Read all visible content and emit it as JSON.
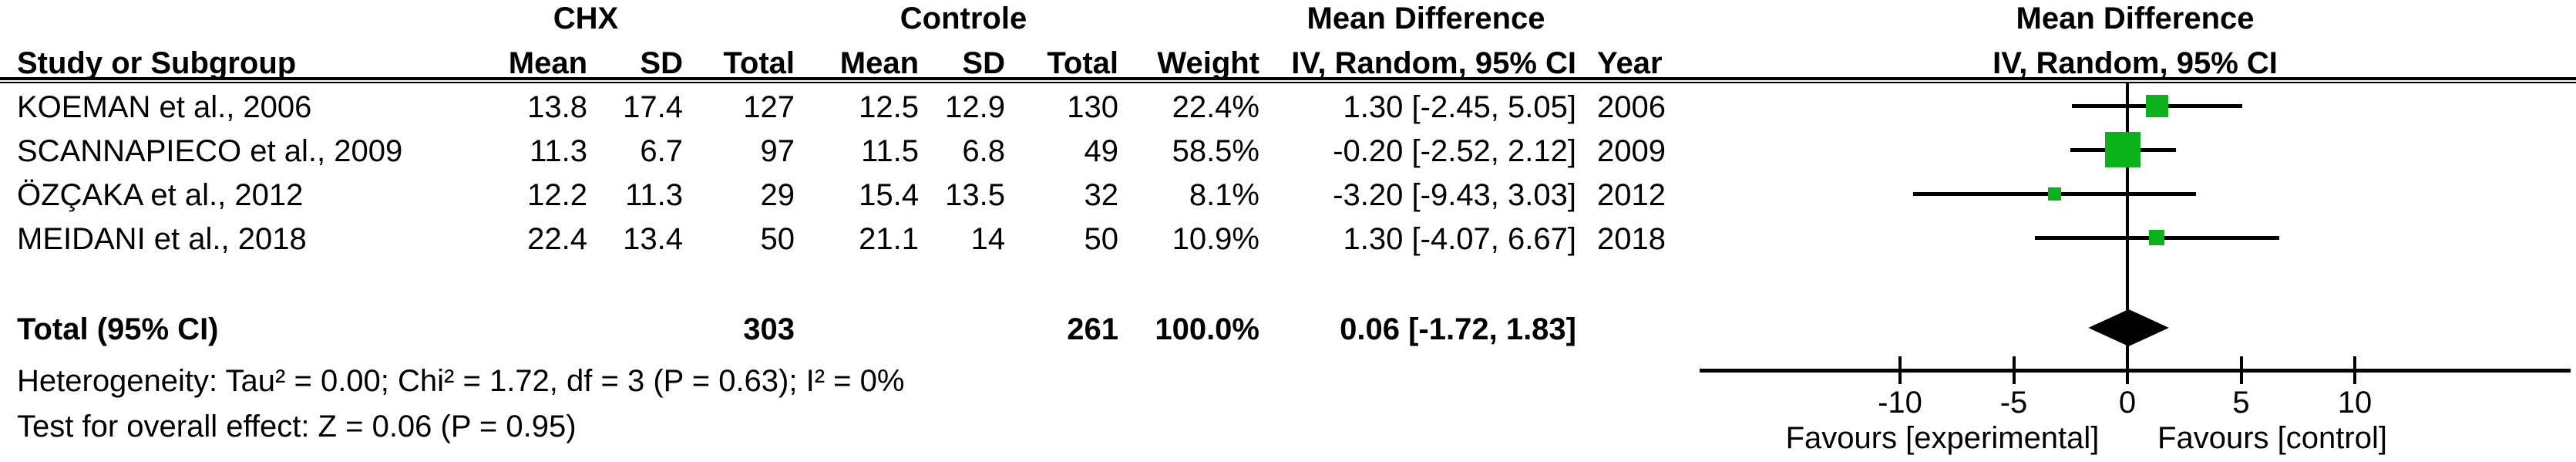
{
  "header": {
    "group1": "CHX",
    "group2": "Controle",
    "effect_col_title": "Mean Difference",
    "effect_col_subtitle": "IV, Random, 95% CI",
    "plot_title": "Mean Difference",
    "plot_subtitle": "IV, Random, 95% CI",
    "columns": {
      "study": "Study or Subgroup",
      "mean1": "Mean",
      "sd1": "SD",
      "total1": "Total",
      "mean2": "Mean",
      "sd2": "SD",
      "total2": "Total",
      "weight": "Weight",
      "ci": "IV, Random, 95% CI",
      "year": "Year"
    }
  },
  "table": {
    "rows": [
      {
        "study": "KOEMAN et al., 2006",
        "chx_mean": "13.8",
        "chx_sd": "17.4",
        "chx_total": "127",
        "ctl_mean": "12.5",
        "ctl_sd": "12.9",
        "ctl_total": "130",
        "weight": "22.4%",
        "ci": "1.30 [-2.45, 5.05]",
        "year": "2006"
      },
      {
        "study": "SCANNAPIECO et al., 2009",
        "chx_mean": "11.3",
        "chx_sd": "6.7",
        "chx_total": "97",
        "ctl_mean": "11.5",
        "ctl_sd": "6.8",
        "ctl_total": "49",
        "weight": "58.5%",
        "ci": "-0.20 [-2.52, 2.12]",
        "year": "2009"
      },
      {
        "study": "ÖZÇAKA et al., 2012",
        "chx_mean": "12.2",
        "chx_sd": "11.3",
        "chx_total": "29",
        "ctl_mean": "15.4",
        "ctl_sd": "13.5",
        "ctl_total": "32",
        "weight": "8.1%",
        "ci": "-3.20 [-9.43, 3.03]",
        "year": "2012"
      },
      {
        "study": "MEIDANI et al., 2018",
        "chx_mean": "22.4",
        "chx_sd": "13.4",
        "chx_total": "50",
        "ctl_mean": "21.1",
        "ctl_sd": "14",
        "ctl_total": "50",
        "weight": "10.9%",
        "ci": "1.30 [-4.07, 6.67]",
        "year": "2018"
      }
    ],
    "total": {
      "label": "Total (95% CI)",
      "chx_total": "303",
      "ctl_total": "261",
      "weight": "100.0%",
      "ci": "0.06 [-1.72, 1.83]"
    },
    "footer": {
      "heterogeneity": "Heterogeneity: Tau² = 0.00; Chi² = 1.72, df = 3 (P = 0.63); I² = 0%",
      "overall_effect": "Test for overall effect: Z = 0.06 (P = 0.95)"
    }
  },
  "chart_data": {
    "type": "forest",
    "effect_measure": "Mean Difference",
    "method": "IV, Random, 95% CI",
    "studies": [
      {
        "name": "KOEMAN et al., 2006",
        "year": 2006,
        "md": 1.3,
        "ci_low": -2.45,
        "ci_high": 5.05,
        "weight_pct": 22.4
      },
      {
        "name": "SCANNAPIECO et al., 2009",
        "year": 2009,
        "md": -0.2,
        "ci_low": -2.52,
        "ci_high": 2.12,
        "weight_pct": 58.5
      },
      {
        "name": "ÖZÇAKA et al., 2012",
        "year": 2012,
        "md": -3.2,
        "ci_low": -9.43,
        "ci_high": 3.03,
        "weight_pct": 8.1
      },
      {
        "name": "MEIDANI et al., 2018",
        "year": 2018,
        "md": 1.3,
        "ci_low": -4.07,
        "ci_high": 6.67,
        "weight_pct": 10.9
      }
    ],
    "total": {
      "md": 0.06,
      "ci_low": -1.72,
      "ci_high": 1.83
    },
    "axis": {
      "ticks": [
        {
          "value": -10,
          "label": "-10"
        },
        {
          "value": -5,
          "label": "-5"
        },
        {
          "value": 0,
          "label": "0"
        },
        {
          "value": 5,
          "label": "5"
        },
        {
          "value": 10,
          "label": "10"
        }
      ],
      "min": -12,
      "max": 19.5
    },
    "favours_left": "Favours [experimental]",
    "favours_right": "Favours [control]",
    "marker_color": "#0bb21e",
    "line_color": "#000000",
    "diamond_color": "#000000"
  }
}
